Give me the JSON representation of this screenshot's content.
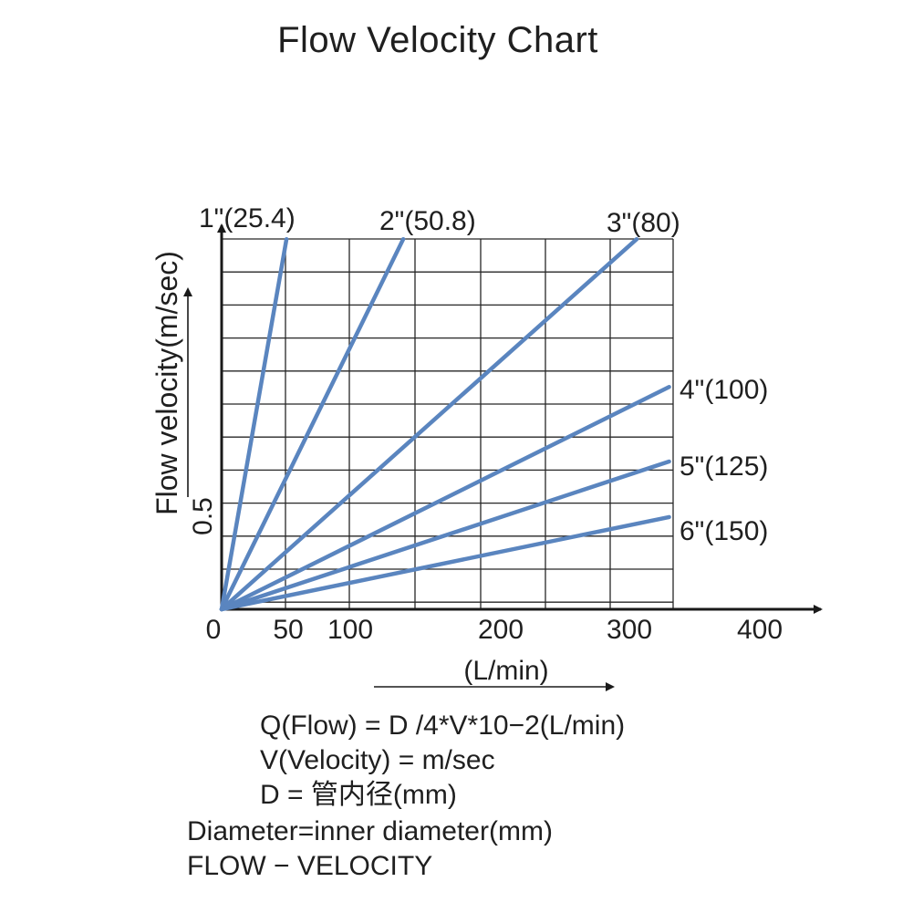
{
  "title": "Flow Velocity Chart",
  "chart_data": {
    "type": "line",
    "title": "Flow Velocity Chart",
    "xlabel": "(L/min)",
    "ylabel": "Flow velocity(m/sec)",
    "x_ticks": [
      "0",
      "50",
      "100",
      "200",
      "300",
      "400"
    ],
    "x_tick_values": [
      0,
      50,
      100,
      200,
      300,
      400
    ],
    "y_ticks": [
      "0.5"
    ],
    "y_tick_values": [
      0.5
    ],
    "xlim": [
      0,
      460
    ],
    "ylim": [
      0,
      2.95
    ],
    "grid": true,
    "series": [
      {
        "name": "1\"(25.4)",
        "x": [
          0,
          50
        ],
        "y": [
          0,
          2.93
        ]
      },
      {
        "name": "2\"(50.8)",
        "x": [
          0,
          140
        ],
        "y": [
          0,
          2.93
        ]
      },
      {
        "name": "3\"(80)",
        "x": [
          0,
          320
        ],
        "y": [
          0,
          2.93
        ]
      },
      {
        "name": "4\"(100)",
        "x": [
          0,
          345
        ],
        "y": [
          0,
          1.76
        ]
      },
      {
        "name": "5\"(125)",
        "x": [
          0,
          345
        ],
        "y": [
          0,
          1.17
        ]
      },
      {
        "name": "6\"(150)",
        "x": [
          0,
          345
        ],
        "y": [
          0,
          0.73
        ]
      }
    ]
  },
  "notes": [
    "Q(Flow) = D /4*V*10−2(L/min)",
    "V(Velocity) = m/sec",
    "D = 管内径(mm)",
    "Diameter=inner diameter(mm)",
    "FLOW − VELOCITY"
  ],
  "colors": {
    "line": "#5a85bf",
    "axis": "#1a1a1a",
    "grid": "#262626"
  }
}
